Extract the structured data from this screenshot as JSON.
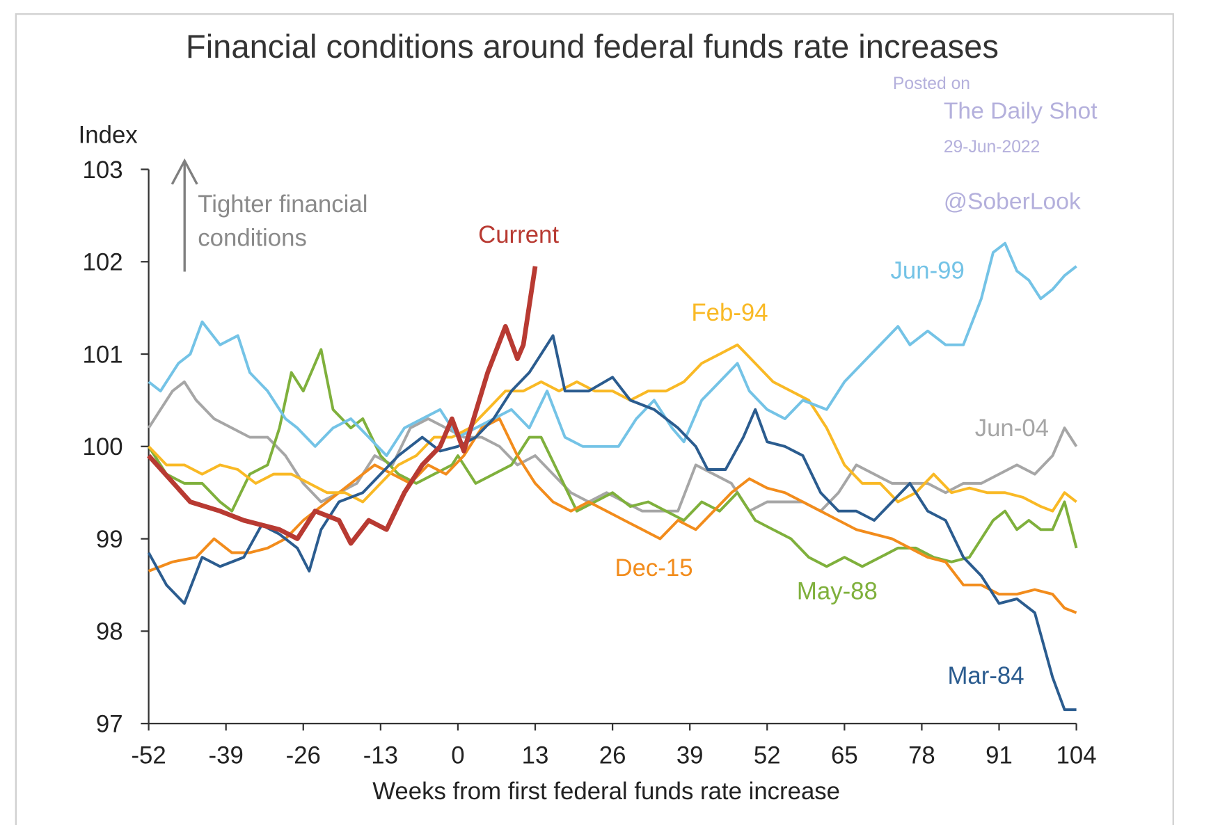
{
  "chart_data": {
    "type": "line",
    "title": "Financial conditions around federal funds rate increases",
    "xlabel": "Weeks from first federal funds rate increase",
    "ylabel": "Index",
    "xlim": [
      -52,
      104
    ],
    "ylim": [
      97,
      103
    ],
    "xticks": [
      -52,
      -39,
      -26,
      -13,
      0,
      13,
      26,
      39,
      52,
      65,
      78,
      91,
      104
    ],
    "yticks": [
      97,
      98,
      99,
      100,
      101,
      102,
      103
    ],
    "grid": false,
    "legend": "inline labels",
    "annotation": {
      "line1": "Tighter financial",
      "line2": "conditions",
      "arrow": "up"
    },
    "watermark": {
      "posted": "Posted on",
      "source": "The Daily Shot",
      "date": "29-Jun-2022",
      "handle": "@SoberLook"
    },
    "series": [
      {
        "name": "Jun-04",
        "color": "#a6a6a6",
        "x": [
          -52,
          -50,
          -48,
          -46,
          -44,
          -41,
          -38,
          -35,
          -32,
          -29,
          -26,
          -23,
          -20,
          -17,
          -14,
          -11,
          -8,
          -5,
          -2,
          1,
          4,
          7,
          10,
          13,
          16,
          19,
          22,
          25,
          28,
          31,
          34,
          37,
          40,
          43,
          46,
          49,
          52,
          55,
          58,
          61,
          64,
          67,
          70,
          73,
          76,
          79,
          82,
          85,
          88,
          91,
          94,
          97,
          100,
          102,
          104
        ],
        "y": [
          100.2,
          100.4,
          100.6,
          100.7,
          100.5,
          100.3,
          100.2,
          100.1,
          100.1,
          99.9,
          99.6,
          99.4,
          99.5,
          99.6,
          99.9,
          99.8,
          100.2,
          100.3,
          100.2,
          100.1,
          100.1,
          100.0,
          99.8,
          99.9,
          99.7,
          99.5,
          99.4,
          99.5,
          99.4,
          99.3,
          99.3,
          99.3,
          99.8,
          99.7,
          99.6,
          99.3,
          99.4,
          99.4,
          99.4,
          99.3,
          99.5,
          99.8,
          99.7,
          99.6,
          99.6,
          99.6,
          99.5,
          99.6,
          99.6,
          99.7,
          99.8,
          99.7,
          99.9,
          100.2,
          100.0
        ]
      },
      {
        "name": "May-88",
        "color": "#7fb03c",
        "x": [
          -52,
          -49,
          -46,
          -43,
          -40,
          -38,
          -35,
          -32,
          -30,
          -28,
          -26,
          -24,
          -23,
          -21,
          -18,
          -16,
          -13,
          -10,
          -7,
          -4,
          -1,
          0,
          3,
          6,
          9,
          12,
          14,
          17,
          20,
          23,
          26,
          29,
          32,
          35,
          38,
          41,
          44,
          47,
          50,
          53,
          56,
          59,
          62,
          65,
          68,
          71,
          74,
          77,
          80,
          83,
          86,
          88,
          90,
          92,
          94,
          96,
          98,
          100,
          102,
          104
        ],
        "y": [
          100.0,
          99.7,
          99.6,
          99.6,
          99.4,
          99.3,
          99.7,
          99.8,
          100.2,
          100.8,
          100.6,
          100.9,
          101.05,
          100.4,
          100.2,
          100.3,
          99.9,
          99.7,
          99.6,
          99.7,
          99.8,
          99.9,
          99.6,
          99.7,
          99.8,
          100.1,
          100.1,
          99.7,
          99.3,
          99.4,
          99.5,
          99.35,
          99.4,
          99.3,
          99.2,
          99.4,
          99.3,
          99.5,
          99.2,
          99.1,
          99.0,
          98.8,
          98.7,
          98.8,
          98.7,
          98.8,
          98.9,
          98.9,
          98.8,
          98.75,
          98.8,
          99.0,
          99.2,
          99.3,
          99.1,
          99.2,
          99.1,
          99.1,
          99.4,
          98.9
        ]
      },
      {
        "name": "Dec-15",
        "color": "#f28c1c",
        "x": [
          -52,
          -48,
          -44,
          -41,
          -38,
          -35,
          -32,
          -29,
          -26,
          -23,
          -20,
          -17,
          -14,
          -11,
          -8,
          -5,
          -2,
          1,
          4,
          7,
          10,
          13,
          16,
          19,
          22,
          25,
          28,
          31,
          34,
          37,
          40,
          43,
          46,
          49,
          52,
          55,
          58,
          61,
          64,
          67,
          70,
          73,
          76,
          79,
          82,
          85,
          88,
          91,
          94,
          97,
          100,
          102,
          104
        ],
        "y": [
          98.65,
          98.75,
          98.8,
          99.0,
          98.85,
          98.85,
          98.9,
          99.0,
          99.2,
          99.35,
          99.5,
          99.65,
          99.8,
          99.7,
          99.6,
          99.8,
          99.7,
          99.9,
          100.2,
          100.3,
          99.9,
          99.6,
          99.4,
          99.3,
          99.4,
          99.3,
          99.2,
          99.1,
          99.0,
          99.2,
          99.1,
          99.3,
          99.5,
          99.65,
          99.55,
          99.5,
          99.4,
          99.3,
          99.2,
          99.1,
          99.05,
          99.0,
          98.9,
          98.8,
          98.75,
          98.5,
          98.5,
          98.4,
          98.4,
          98.45,
          98.4,
          98.25,
          98.2
        ]
      },
      {
        "name": "Feb-94",
        "color": "#f9b925",
        "x": [
          -52,
          -49,
          -46,
          -43,
          -40,
          -37,
          -34,
          -31,
          -28,
          -25,
          -22,
          -19,
          -16,
          -13,
          -10,
          -7,
          -4,
          -1,
          2,
          5,
          8,
          11,
          14,
          17,
          20,
          23,
          26,
          29,
          32,
          35,
          38,
          41,
          44,
          47,
          50,
          53,
          56,
          59,
          62,
          65,
          68,
          71,
          74,
          77,
          80,
          83,
          86,
          89,
          92,
          95,
          98,
          100,
          102,
          104
        ],
        "y": [
          100.0,
          99.8,
          99.8,
          99.7,
          99.8,
          99.75,
          99.6,
          99.7,
          99.7,
          99.6,
          99.5,
          99.5,
          99.4,
          99.6,
          99.8,
          99.9,
          100.1,
          100.1,
          100.2,
          100.4,
          100.6,
          100.6,
          100.7,
          100.6,
          100.7,
          100.6,
          100.6,
          100.5,
          100.6,
          100.6,
          100.7,
          100.9,
          101.0,
          101.1,
          100.9,
          100.7,
          100.6,
          100.5,
          100.2,
          99.8,
          99.6,
          99.6,
          99.4,
          99.5,
          99.7,
          99.5,
          99.55,
          99.5,
          99.5,
          99.45,
          99.35,
          99.3,
          99.5,
          99.4
        ]
      },
      {
        "name": "Jun-99",
        "color": "#74c3e6",
        "x": [
          -52,
          -50,
          -47,
          -45,
          -43,
          -40,
          -37,
          -35,
          -32,
          -29,
          -27,
          -24,
          -21,
          -18,
          -15,
          -12,
          -9,
          -6,
          -3,
          0,
          3,
          6,
          9,
          12,
          15,
          18,
          21,
          24,
          27,
          30,
          33,
          36,
          38,
          41,
          44,
          47,
          49,
          52,
          55,
          58,
          62,
          65,
          68,
          71,
          74,
          76,
          79,
          82,
          85,
          88,
          90,
          92,
          94,
          96,
          98,
          100,
          102,
          104
        ],
        "y": [
          100.7,
          100.6,
          100.9,
          101.0,
          101.35,
          101.1,
          101.2,
          100.8,
          100.6,
          100.3,
          100.2,
          100.0,
          100.2,
          100.3,
          100.1,
          99.9,
          100.2,
          100.3,
          100.4,
          100.1,
          100.2,
          100.3,
          100.4,
          100.2,
          100.6,
          100.1,
          100.0,
          100.0,
          100.0,
          100.3,
          100.5,
          100.2,
          100.05,
          100.5,
          100.7,
          100.9,
          100.6,
          100.4,
          100.3,
          100.5,
          100.4,
          100.7,
          100.9,
          101.1,
          101.3,
          101.1,
          101.25,
          101.1,
          101.1,
          101.6,
          102.1,
          102.2,
          101.9,
          101.8,
          101.6,
          101.7,
          101.85,
          101.95
        ]
      },
      {
        "name": "Mar-84",
        "color": "#2b5c8f",
        "x": [
          -52,
          -49,
          -46,
          -43,
          -40,
          -36,
          -33,
          -30,
          -27,
          -25,
          -23,
          -20,
          -16,
          -13,
          -10,
          -6,
          -3,
          0,
          3,
          6,
          9,
          12,
          14,
          16,
          18,
          22,
          26,
          29,
          33,
          37,
          40,
          42,
          45,
          48,
          50,
          52,
          55,
          58,
          61,
          64,
          67,
          70,
          73,
          76,
          79,
          82,
          85,
          88,
          91,
          94,
          97,
          100,
          102,
          104
        ],
        "y": [
          98.85,
          98.5,
          98.3,
          98.8,
          98.7,
          98.8,
          99.15,
          99.05,
          98.9,
          98.65,
          99.1,
          99.4,
          99.5,
          99.7,
          99.9,
          100.1,
          99.95,
          100.0,
          100.1,
          100.3,
          100.6,
          100.8,
          101.0,
          101.2,
          100.6,
          100.6,
          100.75,
          100.5,
          100.4,
          100.2,
          100.0,
          99.75,
          99.75,
          100.1,
          100.4,
          100.05,
          100.0,
          99.9,
          99.5,
          99.3,
          99.3,
          99.2,
          99.4,
          99.6,
          99.3,
          99.2,
          98.8,
          98.6,
          98.3,
          98.35,
          98.2,
          97.5,
          97.15,
          97.15
        ]
      },
      {
        "name": "Current",
        "color": "#b83a32",
        "x": [
          -52,
          -45,
          -40,
          -36,
          -30,
          -27,
          -24,
          -20,
          -18,
          -15,
          -12,
          -9,
          -6,
          -3,
          -1,
          1,
          5,
          8,
          10,
          11,
          13
        ],
        "y": [
          99.9,
          99.4,
          99.3,
          99.2,
          99.1,
          99.0,
          99.3,
          99.2,
          98.95,
          99.2,
          99.1,
          99.5,
          99.8,
          100.0,
          100.3,
          99.95,
          100.8,
          101.3,
          100.95,
          101.1,
          101.95
        ]
      }
    ]
  }
}
